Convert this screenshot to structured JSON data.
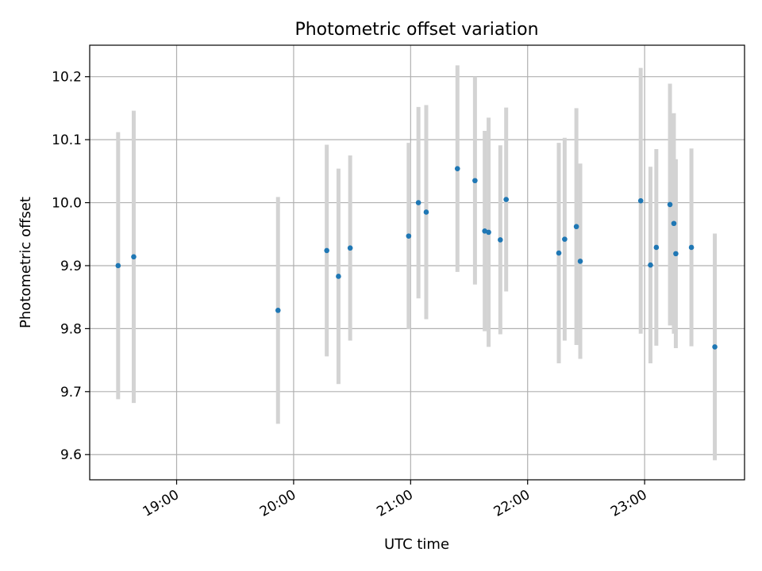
{
  "chart_data": {
    "type": "scatter",
    "title": "Photometric offset variation",
    "xlabel": "UTC time",
    "ylabel": "Photometric offset",
    "x_tick_labels": [
      "19:00",
      "20:00",
      "21:00",
      "22:00",
      "23:00"
    ],
    "x_ticks_hours": [
      19,
      20,
      21,
      22,
      23
    ],
    "y_ticks": [
      9.6,
      9.7,
      9.8,
      9.9,
      10.0,
      10.1,
      10.2
    ],
    "xlim_hours": [
      18.257,
      23.854
    ],
    "ylim": [
      9.56,
      10.25
    ],
    "grid": true,
    "colors": {
      "marker": "#1f77b4",
      "errorbar": "#d3d3d3",
      "grid": "#b0b0b0"
    },
    "series": [
      {
        "points": [
          {
            "time": "18:30",
            "value": 9.9,
            "error": 0.212
          },
          {
            "time": "18:38",
            "value": 9.914,
            "error": 0.232
          },
          {
            "time": "19:52",
            "value": 9.829,
            "error": 0.18
          },
          {
            "time": "20:17",
            "value": 9.924,
            "error": 0.168
          },
          {
            "time": "20:23",
            "value": 9.883,
            "error": 0.171
          },
          {
            "time": "20:29",
            "value": 9.928,
            "error": 0.147
          },
          {
            "time": "20:59",
            "value": 9.947,
            "error": 0.148
          },
          {
            "time": "21:04",
            "value": 10.0,
            "error": 0.152
          },
          {
            "time": "21:08",
            "value": 9.985,
            "error": 0.17
          },
          {
            "time": "21:24",
            "value": 10.054,
            "error": 0.164
          },
          {
            "time": "21:33",
            "value": 10.035,
            "error": 0.165
          },
          {
            "time": "21:38",
            "value": 9.955,
            "error": 0.159
          },
          {
            "time": "21:40",
            "value": 9.953,
            "error": 0.182
          },
          {
            "time": "21:46",
            "value": 9.941,
            "error": 0.15
          },
          {
            "time": "21:49",
            "value": 10.005,
            "error": 0.146
          },
          {
            "time": "22:16",
            "value": 9.92,
            "error": 0.175
          },
          {
            "time": "22:19",
            "value": 9.942,
            "error": 0.161
          },
          {
            "time": "22:25",
            "value": 9.962,
            "error": 0.188
          },
          {
            "time": "22:27",
            "value": 9.907,
            "error": 0.155
          },
          {
            "time": "22:58",
            "value": 10.003,
            "error": 0.211
          },
          {
            "time": "23:03",
            "value": 9.901,
            "error": 0.156
          },
          {
            "time": "23:06",
            "value": 9.929,
            "error": 0.156
          },
          {
            "time": "23:13",
            "value": 9.997,
            "error": 0.192
          },
          {
            "time": "23:15",
            "value": 9.967,
            "error": 0.175
          },
          {
            "time": "23:16",
            "value": 9.919,
            "error": 0.15
          },
          {
            "time": "23:24",
            "value": 9.929,
            "error": 0.157
          },
          {
            "time": "23:36",
            "value": 9.771,
            "error": 0.18
          }
        ]
      }
    ]
  }
}
